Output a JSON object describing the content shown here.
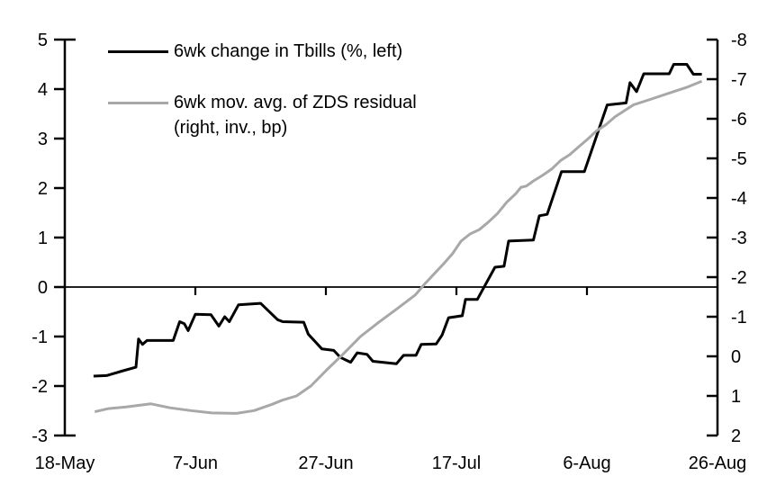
{
  "chart_data": {
    "type": "line",
    "title": "",
    "x_axis": {
      "range": [
        0,
        100
      ],
      "ticks": [
        {
          "day": 0,
          "label": "18-May"
        },
        {
          "day": 20,
          "label": "7-Jun"
        },
        {
          "day": 40,
          "label": "27-Jun"
        },
        {
          "day": 60,
          "label": "17-Jul"
        },
        {
          "day": 80,
          "label": "6-Aug"
        },
        {
          "day": 100,
          "label": "26-Aug"
        }
      ]
    },
    "left_axis": {
      "top": 5,
      "bottom": -3,
      "ticks": [
        5,
        4,
        3,
        2,
        1,
        0,
        -1,
        -2,
        -3
      ]
    },
    "right_axis": {
      "top": -8,
      "bottom": 2,
      "inverted": true,
      "ticks": [
        -8,
        -7,
        -6,
        -5,
        -4,
        -3,
        -2,
        -1,
        0,
        1,
        2
      ]
    },
    "zero_line_left_value": 0,
    "series": [
      {
        "id": "tbills-line",
        "name": "6wk change in Tbills (%, left)",
        "axis": "left",
        "color": "#000000",
        "width": 3,
        "points": [
          [
            4.4,
            -1.8
          ],
          [
            6.4,
            -1.79
          ],
          [
            8.7,
            -1.7
          ],
          [
            10.9,
            -1.62
          ],
          [
            11.3,
            -1.05
          ],
          [
            11.9,
            -1.16
          ],
          [
            12.6,
            -1.08
          ],
          [
            16.6,
            -1.08
          ],
          [
            17.6,
            -0.7
          ],
          [
            18.3,
            -0.74
          ],
          [
            18.9,
            -0.88
          ],
          [
            20,
            -0.55
          ],
          [
            22.4,
            -0.56
          ],
          [
            23.6,
            -0.79
          ],
          [
            24.5,
            -0.6
          ],
          [
            25.2,
            -0.7
          ],
          [
            26.6,
            -0.36
          ],
          [
            30,
            -0.33
          ],
          [
            32.6,
            -0.66
          ],
          [
            33.4,
            -0.7
          ],
          [
            36.6,
            -0.71
          ],
          [
            37.3,
            -0.95
          ],
          [
            39.4,
            -1.25
          ],
          [
            41.2,
            -1.28
          ],
          [
            42.2,
            -1.42
          ],
          [
            43.8,
            -1.52
          ],
          [
            44.8,
            -1.33
          ],
          [
            46.3,
            -1.36
          ],
          [
            47.2,
            -1.5
          ],
          [
            50.8,
            -1.55
          ],
          [
            51.9,
            -1.38
          ],
          [
            53.8,
            -1.38
          ],
          [
            54.6,
            -1.16
          ],
          [
            56.9,
            -1.15
          ],
          [
            57.8,
            -0.97
          ],
          [
            58.8,
            -0.62
          ],
          [
            60.9,
            -0.58
          ],
          [
            61.4,
            -0.25
          ],
          [
            63.2,
            -0.25
          ],
          [
            65.9,
            0.4
          ],
          [
            67.3,
            0.42
          ],
          [
            68,
            0.93
          ],
          [
            71.8,
            0.95
          ],
          [
            72.7,
            1.44
          ],
          [
            73.9,
            1.47
          ],
          [
            76.1,
            2.33
          ],
          [
            79.6,
            2.33
          ],
          [
            83.1,
            3.68
          ],
          [
            86,
            3.72
          ],
          [
            86.6,
            4.13
          ],
          [
            87.6,
            3.95
          ],
          [
            88.7,
            4.31
          ],
          [
            92.6,
            4.31
          ],
          [
            93.3,
            4.5
          ],
          [
            95.3,
            4.5
          ],
          [
            96.3,
            4.3
          ],
          [
            97.6,
            4.3
          ]
        ]
      },
      {
        "id": "zds-residual-line",
        "name": "6wk mov. avg. of ZDS residual (right, inv., bp)",
        "axis": "right",
        "color": "#a8a8a8",
        "width": 3,
        "points": [
          [
            4.6,
            1.4
          ],
          [
            6.7,
            1.32
          ],
          [
            9.4,
            1.28
          ],
          [
            13.2,
            1.2
          ],
          [
            16.1,
            1.3
          ],
          [
            19.3,
            1.37
          ],
          [
            22.5,
            1.43
          ],
          [
            26.3,
            1.44
          ],
          [
            29,
            1.37
          ],
          [
            31.8,
            1.21
          ],
          [
            33.3,
            1.11
          ],
          [
            35.5,
            1
          ],
          [
            37.7,
            0.75
          ],
          [
            40.2,
            0.33
          ],
          [
            42.6,
            -0.05
          ],
          [
            45.3,
            -0.5
          ],
          [
            48.1,
            -0.86
          ],
          [
            50.9,
            -1.2
          ],
          [
            53.7,
            -1.55
          ],
          [
            55.1,
            -1.82
          ],
          [
            56.4,
            -2.05
          ],
          [
            58,
            -2.33
          ],
          [
            59.4,
            -2.59
          ],
          [
            60.7,
            -2.91
          ],
          [
            62.1,
            -3.09
          ],
          [
            63.5,
            -3.2
          ],
          [
            64.9,
            -3.39
          ],
          [
            66.3,
            -3.61
          ],
          [
            67.7,
            -3.89
          ],
          [
            69.1,
            -4.11
          ],
          [
            69.9,
            -4.27
          ],
          [
            70.7,
            -4.3
          ],
          [
            71.8,
            -4.43
          ],
          [
            73.2,
            -4.57
          ],
          [
            74.6,
            -4.73
          ],
          [
            76,
            -4.95
          ],
          [
            77.4,
            -5.1
          ],
          [
            78.8,
            -5.3
          ],
          [
            80.2,
            -5.5
          ],
          [
            81.5,
            -5.7
          ],
          [
            82.9,
            -5.85
          ],
          [
            84.3,
            -6.05
          ],
          [
            87.1,
            -6.35
          ],
          [
            89.9,
            -6.5
          ],
          [
            92.6,
            -6.65
          ],
          [
            95.4,
            -6.8
          ],
          [
            97.6,
            -6.95
          ]
        ]
      }
    ]
  },
  "legend": {
    "items": [
      {
        "label": "6wk change in Tbills (%, left)",
        "color": "#000000"
      },
      {
        "line1": "6wk mov. avg. of ZDS residual",
        "line2": "(right, inv., bp)",
        "color": "#a8a8a8"
      }
    ]
  }
}
